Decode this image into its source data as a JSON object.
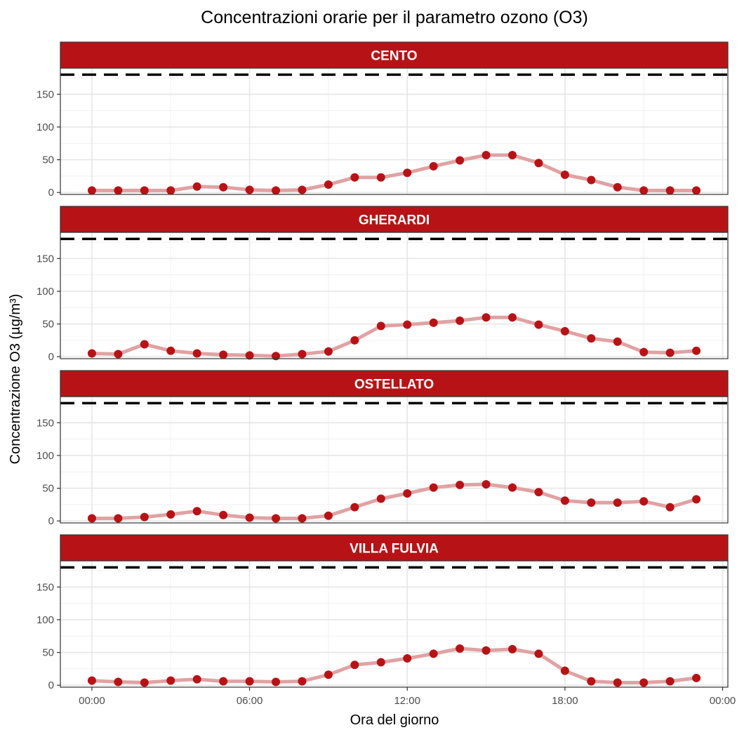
{
  "chart_data": {
    "type": "line",
    "title": "Concentrazioni orarie per il parametro ozono (O3)",
    "xlabel": "Ora del giorno",
    "ylabel": "Concentrazione O3 (µg/m³)",
    "x_ticks": [
      "00:00",
      "06:00",
      "12:00",
      "18:00",
      "00:00"
    ],
    "y_ticks": [
      0,
      50,
      100,
      150
    ],
    "ylim": [
      -3,
      190
    ],
    "xlim_hours": [
      -1.2,
      24.2
    ],
    "threshold": 180,
    "hours": [
      0,
      1,
      2,
      3,
      4,
      5,
      6,
      7,
      8,
      9,
      10,
      11,
      12,
      13,
      14,
      15,
      16,
      17,
      18,
      19,
      20,
      21,
      22,
      23
    ],
    "grid": true,
    "colors": {
      "strip": "#b71316",
      "line": "#e0a2a3",
      "point": "#b71316",
      "threshold": "#000000"
    },
    "panels": [
      {
        "name": "CENTO",
        "values": [
          3,
          3,
          3,
          3,
          9,
          8,
          4,
          3,
          4,
          12,
          23,
          23,
          30,
          40,
          49,
          57,
          57,
          45,
          27,
          19,
          8,
          3,
          3,
          3
        ]
      },
      {
        "name": "GHERARDI",
        "values": [
          5,
          4,
          19,
          9,
          5,
          3,
          2,
          1,
          4,
          8,
          25,
          47,
          49,
          52,
          55,
          60,
          60,
          49,
          39,
          28,
          23,
          7,
          6,
          9
        ]
      },
      {
        "name": "OSTELLATO",
        "values": [
          4,
          4,
          6,
          10,
          15,
          9,
          5,
          4,
          4,
          8,
          21,
          34,
          42,
          51,
          55,
          56,
          51,
          44,
          31,
          28,
          28,
          30,
          21,
          33
        ]
      },
      {
        "name": "VILLA FULVIA",
        "values": [
          7,
          5,
          4,
          7,
          9,
          6,
          6,
          5,
          6,
          16,
          31,
          35,
          41,
          48,
          56,
          53,
          55,
          48,
          22,
          6,
          4,
          4,
          6,
          11
        ]
      }
    ]
  }
}
